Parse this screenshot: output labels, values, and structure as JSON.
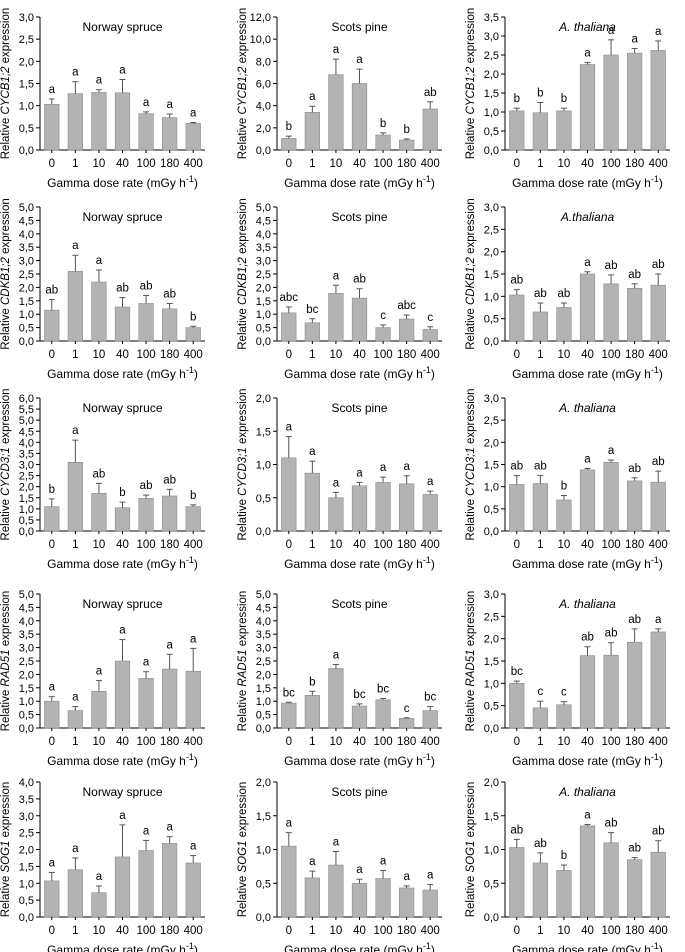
{
  "figure": {
    "bar_color": "#b3b3b3",
    "bar_stroke": "#8c8c8c",
    "axis_color": "#000000",
    "x_axis_label": "Gamma dose rate (mGy h",
    "x_axis_label_sup": "-1",
    "x_axis_label_end": ")",
    "y_label_prefix": "Relative ",
    "y_label_suffix": " expression"
  },
  "chart_data": [
    {
      "type": "bar",
      "row": 0,
      "col": 0,
      "title": "Norway spruce",
      "title_italic": false,
      "gene": "CYCB1;2",
      "categories": [
        "0",
        "1",
        "10",
        "40",
        "100",
        "180",
        "400"
      ],
      "values": [
        1.03,
        1.27,
        1.3,
        1.29,
        0.82,
        0.73,
        0.6
      ],
      "errors": [
        0.12,
        0.27,
        0.06,
        0.3,
        0.04,
        0.08,
        0.02
      ],
      "letters": [
        "a",
        "a",
        "a",
        "a",
        "a",
        "a",
        "a"
      ],
      "ylim": [
        0,
        3
      ],
      "yticks": [
        "0,0",
        "0,5",
        "1,0",
        "1,5",
        "2,0",
        "2,5",
        "3,0"
      ]
    },
    {
      "type": "bar",
      "row": 0,
      "col": 1,
      "title": "Scots pine",
      "title_italic": false,
      "gene": "CYCB1;2",
      "categories": [
        "0",
        "1",
        "10",
        "40",
        "100",
        "180",
        "400"
      ],
      "values": [
        1.05,
        3.4,
        6.8,
        6.0,
        1.35,
        0.9,
        3.7
      ],
      "errors": [
        0.2,
        0.55,
        1.4,
        1.3,
        0.2,
        0.1,
        0.65
      ],
      "letters": [
        "b",
        "a",
        "a",
        "a",
        "b",
        "b",
        "ab"
      ],
      "ylim": [
        0,
        12
      ],
      "yticks": [
        "0,0",
        "2,0",
        "4,0",
        "6,0",
        "8,0",
        "10,0",
        "12,0"
      ]
    },
    {
      "type": "bar",
      "row": 0,
      "col": 2,
      "title": "A. thaliana",
      "title_italic": true,
      "gene": "CYCB1;2",
      "categories": [
        "0",
        "1",
        "10",
        "40",
        "100",
        "180",
        "400"
      ],
      "values": [
        1.03,
        0.98,
        1.03,
        2.25,
        2.5,
        2.55,
        2.62
      ],
      "errors": [
        0.07,
        0.27,
        0.07,
        0.05,
        0.4,
        0.12,
        0.25
      ],
      "letters": [
        "b",
        "b",
        "b",
        "a",
        "a",
        "a",
        "a"
      ],
      "ylim": [
        0,
        3.5
      ],
      "yticks": [
        "0,0",
        "0,5",
        "1,0",
        "1,5",
        "2,0",
        "2,5",
        "3,0",
        "3,5"
      ]
    },
    {
      "type": "bar",
      "row": 1,
      "col": 0,
      "title": "Norway spruce",
      "title_italic": false,
      "gene": "CDKB1;2",
      "categories": [
        "0",
        "1",
        "10",
        "40",
        "100",
        "180",
        "400"
      ],
      "values": [
        1.15,
        2.6,
        2.2,
        1.27,
        1.4,
        1.2,
        0.5
      ],
      "errors": [
        0.4,
        0.6,
        0.45,
        0.35,
        0.3,
        0.2,
        0.05
      ],
      "letters": [
        "ab",
        "a",
        "a",
        "ab",
        "ab",
        "ab",
        "b"
      ],
      "ylim": [
        0,
        5
      ],
      "yticks": [
        "0,0",
        "0,5",
        "1,0",
        "1,5",
        "2,0",
        "2,5",
        "3,0",
        "3,5",
        "4,0",
        "4,5",
        "5,0"
      ]
    },
    {
      "type": "bar",
      "row": 1,
      "col": 1,
      "title": "Scots pine",
      "title_italic": false,
      "gene": "CDKB1;2",
      "categories": [
        "0",
        "1",
        "10",
        "40",
        "100",
        "180",
        "400"
      ],
      "values": [
        1.05,
        0.68,
        1.78,
        1.6,
        0.5,
        0.82,
        0.43
      ],
      "errors": [
        0.22,
        0.15,
        0.3,
        0.35,
        0.1,
        0.15,
        0.1
      ],
      "letters": [
        "abc",
        "bc",
        "a",
        "ab",
        "c",
        "abc",
        "c"
      ],
      "ylim": [
        0,
        5
      ],
      "yticks": [
        "0,0",
        "0,5",
        "1,0",
        "1,5",
        "2,0",
        "2,5",
        "3,0",
        "3,5",
        "4,0",
        "4,5",
        "5,0"
      ]
    },
    {
      "type": "bar",
      "row": 1,
      "col": 2,
      "title": "A.thaliana",
      "title_italic": true,
      "gene": "CDKB1;2",
      "categories": [
        "0",
        "1",
        "10",
        "40",
        "100",
        "180",
        "400"
      ],
      "values": [
        1.03,
        0.65,
        0.75,
        1.5,
        1.28,
        1.18,
        1.25
      ],
      "errors": [
        0.12,
        0.2,
        0.1,
        0.05,
        0.2,
        0.1,
        0.25
      ],
      "letters": [
        "ab",
        "ab",
        "ab",
        "a",
        "ab",
        "ab",
        "ab"
      ],
      "ylim": [
        0,
        3
      ],
      "yticks": [
        "0,0",
        "0,5",
        "1,0",
        "1,5",
        "2,0",
        "2,5",
        "3,0"
      ]
    },
    {
      "type": "bar",
      "row": 2,
      "col": 0,
      "title": "Norway spruce",
      "title_italic": false,
      "gene": "CYCD3;1",
      "categories": [
        "0",
        "1",
        "10",
        "40",
        "100",
        "180",
        "400"
      ],
      "values": [
        1.1,
        3.1,
        1.7,
        1.05,
        1.47,
        1.58,
        1.1
      ],
      "errors": [
        0.35,
        1.0,
        0.45,
        0.25,
        0.15,
        0.3,
        0.08
      ],
      "letters": [
        "b",
        "a",
        "ab",
        "b",
        "ab",
        "ab",
        "b"
      ],
      "ylim": [
        0,
        6
      ],
      "yticks": [
        "0,0",
        "0,5",
        "1,0",
        "1,5",
        "2,0",
        "2,5",
        "3,0",
        "3,5",
        "4,0",
        "4,5",
        "5,0",
        "5,5",
        "6,0"
      ]
    },
    {
      "type": "bar",
      "row": 2,
      "col": 1,
      "title": "Scots pine",
      "title_italic": false,
      "gene": "CYCD3;1",
      "categories": [
        "0",
        "1",
        "10",
        "40",
        "100",
        "180",
        "400"
      ],
      "values": [
        1.1,
        0.87,
        0.5,
        0.68,
        0.73,
        0.71,
        0.55
      ],
      "errors": [
        0.32,
        0.18,
        0.08,
        0.05,
        0.08,
        0.12,
        0.05
      ],
      "letters": [
        "a",
        "a",
        "a",
        "a",
        "a",
        "a",
        "a"
      ],
      "ylim": [
        0,
        2
      ],
      "yticks": [
        "0,0",
        "0,5",
        "1,0",
        "1,5",
        "2,0"
      ]
    },
    {
      "type": "bar",
      "row": 2,
      "col": 2,
      "title": "A. thaliana",
      "title_italic": true,
      "gene": "CYCD3;1",
      "categories": [
        "0",
        "1",
        "10",
        "40",
        "100",
        "180",
        "400"
      ],
      "values": [
        1.05,
        1.07,
        0.7,
        1.38,
        1.55,
        1.13,
        1.1
      ],
      "errors": [
        0.2,
        0.18,
        0.1,
        0.03,
        0.05,
        0.07,
        0.25
      ],
      "letters": [
        "ab",
        "ab",
        "b",
        "a",
        "a",
        "ab",
        "ab"
      ],
      "ylim": [
        0,
        3
      ],
      "yticks": [
        "0,0",
        "0,5",
        "1,0",
        "1,5",
        "2,0",
        "2,5",
        "3,0"
      ]
    },
    {
      "type": "bar",
      "row": 3,
      "col": 0,
      "title": "Norway spruce",
      "title_italic": false,
      "gene": "RAD51",
      "categories": [
        "0",
        "1",
        "10",
        "40",
        "100",
        "180",
        "400"
      ],
      "values": [
        1.0,
        0.65,
        1.37,
        2.5,
        1.85,
        2.2,
        2.12
      ],
      "errors": [
        0.17,
        0.15,
        0.4,
        0.8,
        0.25,
        0.55,
        0.85
      ],
      "letters": [
        "a",
        "a",
        "a",
        "a",
        "a",
        "a",
        "a"
      ],
      "ylim": [
        0,
        5
      ],
      "yticks": [
        "0,0",
        "0,5",
        "1,0",
        "1,5",
        "2,0",
        "2,5",
        "3,0",
        "3,5",
        "4,0",
        "4,5",
        "5,0"
      ]
    },
    {
      "type": "bar",
      "row": 3,
      "col": 1,
      "title": "Scots pine",
      "title_italic": false,
      "gene": "RAD51",
      "categories": [
        "0",
        "1",
        "10",
        "40",
        "100",
        "180",
        "400"
      ],
      "values": [
        0.93,
        1.22,
        2.22,
        0.82,
        1.05,
        0.36,
        0.65
      ],
      "errors": [
        0.03,
        0.15,
        0.15,
        0.08,
        0.05,
        0.02,
        0.15
      ],
      "letters": [
        "bc",
        "b",
        "a",
        "bc",
        "bc",
        "c",
        "bc"
      ],
      "ylim": [
        0,
        5
      ],
      "yticks": [
        "0,0",
        "0,5",
        "1,0",
        "1,5",
        "2,0",
        "2,5",
        "3,0",
        "3,5",
        "4,0",
        "4,5",
        "5,0"
      ]
    },
    {
      "type": "bar",
      "row": 3,
      "col": 2,
      "title": "A. thaliana",
      "title_italic": true,
      "gene": "RAD51",
      "categories": [
        "0",
        "1",
        "10",
        "40",
        "100",
        "180",
        "400"
      ],
      "values": [
        1.0,
        0.45,
        0.52,
        1.62,
        1.63,
        1.92,
        2.15
      ],
      "errors": [
        0.05,
        0.15,
        0.07,
        0.2,
        0.28,
        0.3,
        0.07
      ],
      "letters": [
        "bc",
        "c",
        "c",
        "ab",
        "ab",
        "ab",
        "a"
      ],
      "ylim": [
        0,
        3
      ],
      "yticks": [
        "0,0",
        "0,5",
        "1,0",
        "1,5",
        "2,0",
        "2,5",
        "3,0"
      ]
    },
    {
      "type": "bar",
      "row": 4,
      "col": 0,
      "title": "Norway spruce",
      "title_italic": false,
      "gene": "SOG1",
      "categories": [
        "0",
        "1",
        "10",
        "40",
        "100",
        "180",
        "400"
      ],
      "values": [
        1.07,
        1.4,
        0.72,
        1.78,
        1.97,
        2.18,
        1.6
      ],
      "errors": [
        0.25,
        0.35,
        0.2,
        0.95,
        0.3,
        0.2,
        0.22
      ],
      "letters": [
        "a",
        "a",
        "a",
        "a",
        "a",
        "a",
        "a"
      ],
      "ylim": [
        0,
        4
      ],
      "yticks": [
        "0,0",
        "0,5",
        "1,0",
        "1,5",
        "2,0",
        "2,5",
        "3,0",
        "3,5",
        "4,0"
      ]
    },
    {
      "type": "bar",
      "row": 4,
      "col": 1,
      "title": "Scots pine",
      "title_italic": false,
      "gene": "SOG1",
      "categories": [
        "0",
        "1",
        "10",
        "40",
        "100",
        "180",
        "400"
      ],
      "values": [
        1.05,
        0.58,
        0.77,
        0.5,
        0.57,
        0.43,
        0.4
      ],
      "errors": [
        0.2,
        0.1,
        0.2,
        0.06,
        0.12,
        0.03,
        0.08
      ],
      "letters": [
        "a",
        "a",
        "a",
        "a",
        "a",
        "a",
        "a"
      ],
      "ylim": [
        0,
        2
      ],
      "yticks": [
        "0,0",
        "0,5",
        "1,0",
        "1,5",
        "2,0"
      ]
    },
    {
      "type": "bar",
      "row": 4,
      "col": 2,
      "title": "A. thaliana",
      "title_italic": true,
      "gene": "SOG1",
      "categories": [
        "0",
        "1",
        "10",
        "40",
        "100",
        "180",
        "400"
      ],
      "values": [
        1.03,
        0.8,
        0.69,
        1.35,
        1.1,
        0.85,
        0.96
      ],
      "errors": [
        0.12,
        0.15,
        0.08,
        0.02,
        0.15,
        0.03,
        0.17
      ],
      "letters": [
        "ab",
        "ab",
        "b",
        "a",
        "ab",
        "ab",
        "ab"
      ],
      "ylim": [
        0,
        2
      ],
      "yticks": [
        "0,0",
        "0,5",
        "1,0",
        "1,5",
        "2,0"
      ]
    }
  ]
}
